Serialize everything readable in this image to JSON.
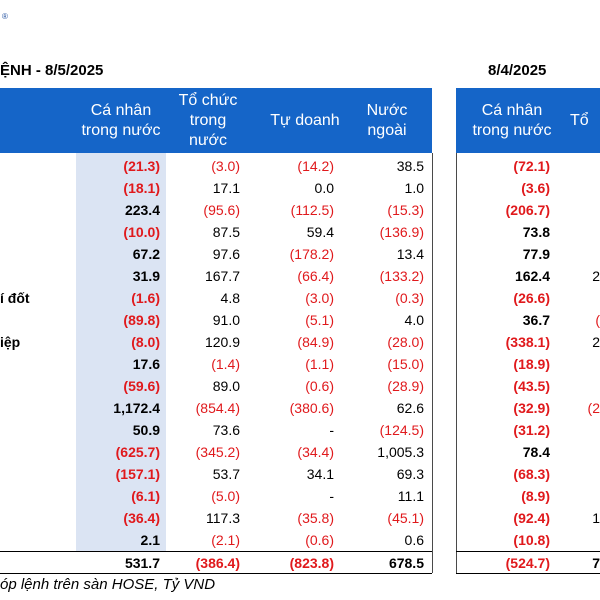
{
  "logo_mark": "®",
  "left_title": "ỆNH - 8/5/2025",
  "right_title": "8/4/2025",
  "headers_left": [
    "Cá nhân\ntrong nước",
    "Tổ chức\ntrong\nnước",
    "Tự doanh",
    "Nước\nngoài"
  ],
  "headers_right": [
    "Cá nhân\ntrong nước",
    "Tổ"
  ],
  "row_labels": [
    "",
    "",
    "",
    "",
    "",
    "",
    "í đốt",
    "",
    "iệp",
    "",
    "",
    "",
    "",
    "",
    "",
    "",
    "",
    ""
  ],
  "rows_left": [
    [
      "(21.3)",
      "(3.0)",
      "(14.2)",
      "38.5"
    ],
    [
      "(18.1)",
      "17.1",
      "0.0",
      "1.0"
    ],
    [
      "223.4",
      "(95.6)",
      "(112.5)",
      "(15.3)"
    ],
    [
      "(10.0)",
      "87.5",
      "59.4",
      "(136.9)"
    ],
    [
      "67.2",
      "97.6",
      "(178.2)",
      "13.4"
    ],
    [
      "31.9",
      "167.7",
      "(66.4)",
      "(133.2)"
    ],
    [
      "(1.6)",
      "4.8",
      "(3.0)",
      "(0.3)"
    ],
    [
      "(89.8)",
      "91.0",
      "(5.1)",
      "4.0"
    ],
    [
      "(8.0)",
      "120.9",
      "(84.9)",
      "(28.0)"
    ],
    [
      "17.6",
      "(1.4)",
      "(1.1)",
      "(15.0)"
    ],
    [
      "(59.6)",
      "89.0",
      "(0.6)",
      "(28.9)"
    ],
    [
      "1,172.4",
      "(854.4)",
      "(380.6)",
      "62.6"
    ],
    [
      "50.9",
      "73.6",
      "-",
      "(124.5)"
    ],
    [
      "(625.7)",
      "(345.2)",
      "(34.4)",
      "1,005.3"
    ],
    [
      "(157.1)",
      "53.7",
      "34.1",
      "69.3"
    ],
    [
      "(6.1)",
      "(5.0)",
      "-",
      "11.1"
    ],
    [
      "(36.4)",
      "117.3",
      "(35.8)",
      "(45.1)"
    ],
    [
      "2.1",
      "(2.1)",
      "(0.6)",
      "0.6"
    ]
  ],
  "rows_right": [
    [
      "(72.1)",
      ""
    ],
    [
      "(3.6)",
      ""
    ],
    [
      "(206.7)",
      ""
    ],
    [
      "73.8",
      ""
    ],
    [
      "77.9",
      ""
    ],
    [
      "162.4",
      "2"
    ],
    [
      "(26.6)",
      ""
    ],
    [
      "36.7",
      "("
    ],
    [
      "(338.1)",
      "2"
    ],
    [
      "(18.9)",
      ""
    ],
    [
      "(43.5)",
      ""
    ],
    [
      "(32.9)",
      "(2"
    ],
    [
      "(31.2)",
      ""
    ],
    [
      "78.4",
      ""
    ],
    [
      "(68.3)",
      ""
    ],
    [
      "(8.9)",
      ""
    ],
    [
      "(92.4)",
      "1"
    ],
    [
      "(10.8)",
      ""
    ]
  ],
  "total_left": [
    "531.7",
    "(386.4)",
    "(823.8)",
    "678.5"
  ],
  "total_right": [
    "(524.7)",
    "7"
  ],
  "note": "óp lệnh trên sàn HOSE, Tỷ VND"
}
